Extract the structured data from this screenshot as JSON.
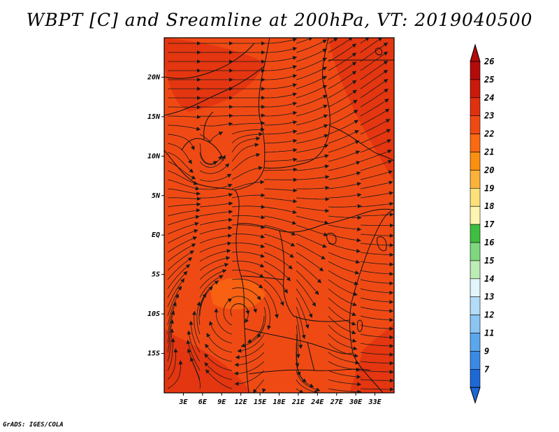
{
  "title": "WBPT [C] and Sreamline at 200hPa, VT: 2019040500",
  "credit": "GrADS: IGES/COLA",
  "map": {
    "lon_range": [
      0,
      36
    ],
    "lat_range": [
      -20,
      25
    ],
    "lon_ticks": [
      {
        "value": 3,
        "label": "3E"
      },
      {
        "value": 6,
        "label": "6E"
      },
      {
        "value": 9,
        "label": "9E"
      },
      {
        "value": 12,
        "label": "12E"
      },
      {
        "value": 15,
        "label": "15E"
      },
      {
        "value": 18,
        "label": "18E"
      },
      {
        "value": 21,
        "label": "21E"
      },
      {
        "value": 24,
        "label": "24E"
      },
      {
        "value": 27,
        "label": "27E"
      },
      {
        "value": 30,
        "label": "30E"
      },
      {
        "value": 33,
        "label": "33E"
      }
    ],
    "lat_ticks": [
      {
        "value": 20,
        "label": "20N"
      },
      {
        "value": 15,
        "label": "15N"
      },
      {
        "value": 10,
        "label": "10N"
      },
      {
        "value": 5,
        "label": "5N"
      },
      {
        "value": 0,
        "label": "EQ"
      },
      {
        "value": -5,
        "label": "5S"
      },
      {
        "value": -10,
        "label": "10S"
      },
      {
        "value": -15,
        "label": "15S"
      }
    ],
    "field_base_color": "#f04a14",
    "streamline_color": "#1a1a1a"
  },
  "colorbar": {
    "levels": [
      {
        "label": "26",
        "color": "#b30a0a"
      },
      {
        "label": "25",
        "color": "#cc1a0a"
      },
      {
        "label": "24",
        "color": "#e0300f"
      },
      {
        "label": "23",
        "color": "#f04a14"
      },
      {
        "label": "22",
        "color": "#fa6a10"
      },
      {
        "label": "21",
        "color": "#fb8f0f"
      },
      {
        "label": "20",
        "color": "#fbb23a"
      },
      {
        "label": "19",
        "color": "#fde07a"
      },
      {
        "label": "18",
        "color": "#fdf5b0"
      },
      {
        "label": "17",
        "color": "#3fbf3f"
      },
      {
        "label": "16",
        "color": "#7fd87f"
      },
      {
        "label": "15",
        "color": "#bdecb6"
      },
      {
        "label": "14",
        "color": "#e3f6fc"
      },
      {
        "label": "13",
        "color": "#b3dcf7"
      },
      {
        "label": "12",
        "color": "#8cc4f2"
      },
      {
        "label": "11",
        "color": "#5aa8ec"
      },
      {
        "label": "9",
        "color": "#3a8ae4"
      },
      {
        "label": "7",
        "color": "#1e68d6"
      }
    ],
    "bottom_color": "#1e68d6"
  }
}
